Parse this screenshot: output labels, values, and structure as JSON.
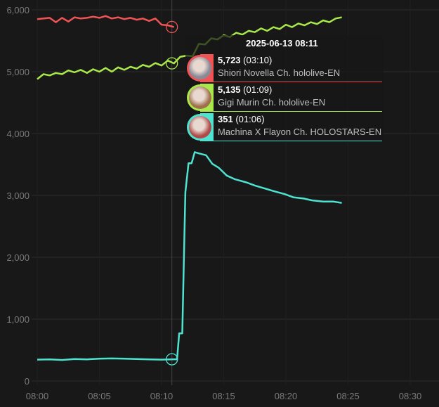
{
  "chart_data": {
    "type": "line",
    "xlabel": "",
    "ylabel": "",
    "ylim": [
      0,
      6000
    ],
    "xlim": [
      "08:00",
      "08:31"
    ],
    "y_ticks": [
      "0",
      "1,000",
      "2,000",
      "3,000",
      "4,000",
      "5,000",
      "6,000"
    ],
    "y_tick_values": [
      0,
      1000,
      2000,
      3000,
      4000,
      5000,
      6000
    ],
    "x_ticks": [
      "08:00",
      "08:05",
      "08:10",
      "08:15",
      "08:20",
      "08:25",
      "08:30"
    ],
    "grid": true,
    "legend": "none",
    "series": [
      {
        "name": "Shiori Novella Ch. hololive-EN",
        "color": "#f05454",
        "x": [
          "08:00:00",
          "08:00:30",
          "08:01:00",
          "08:01:30",
          "08:02:00",
          "08:02:30",
          "08:03:00",
          "08:03:30",
          "08:04:00",
          "08:04:30",
          "08:05:00",
          "08:05:30",
          "08:06:00",
          "08:06:30",
          "08:07:00",
          "08:07:30",
          "08:08:00",
          "08:08:30",
          "08:09:00",
          "08:09:30",
          "08:10:00",
          "08:10:30",
          "08:11:00"
        ],
        "values": [
          5850,
          5860,
          5870,
          5800,
          5870,
          5810,
          5880,
          5860,
          5870,
          5890,
          5870,
          5900,
          5860,
          5880,
          5850,
          5870,
          5840,
          5860,
          5820,
          5860,
          5760,
          5750,
          5723
        ]
      },
      {
        "name": "Gigi Murin Ch. hololive-EN",
        "color": "#a8e84a",
        "x": [
          "08:00:00",
          "08:00:30",
          "08:01:00",
          "08:01:30",
          "08:02:00",
          "08:02:30",
          "08:03:00",
          "08:03:30",
          "08:04:00",
          "08:04:30",
          "08:05:00",
          "08:05:30",
          "08:06:00",
          "08:06:30",
          "08:07:00",
          "08:07:30",
          "08:08:00",
          "08:08:30",
          "08:09:00",
          "08:09:30",
          "08:10:00",
          "08:10:30",
          "08:11:00",
          "08:11:30",
          "08:12:00",
          "08:12:30",
          "08:13:00",
          "08:13:30",
          "08:14:00",
          "08:14:30",
          "08:15:00",
          "08:15:30",
          "08:16:00",
          "08:16:30",
          "08:17:00",
          "08:17:30",
          "08:18:00",
          "08:18:30",
          "08:19:00",
          "08:19:30",
          "08:20:00",
          "08:20:30",
          "08:21:00",
          "08:21:30",
          "08:22:00",
          "08:22:30",
          "08:23:00",
          "08:23:30",
          "08:24:00",
          "08:24:30"
        ],
        "values": [
          4880,
          4960,
          4940,
          4980,
          4960,
          5020,
          4990,
          5030,
          4980,
          5040,
          5000,
          5060,
          5000,
          5070,
          5030,
          5080,
          5050,
          5110,
          5080,
          5140,
          5100,
          5180,
          5135,
          5240,
          5260,
          5250,
          5450,
          5440,
          5540,
          5520,
          5590,
          5560,
          5630,
          5600,
          5660,
          5640,
          5700,
          5660,
          5720,
          5690,
          5760,
          5720,
          5780,
          5750,
          5800,
          5770,
          5830,
          5800,
          5860,
          5880
        ]
      },
      {
        "name": "Machina X Flayon Ch. HOLOSTARS-EN",
        "color": "#4de3d0",
        "x": [
          "08:00:00",
          "08:01:00",
          "08:02:00",
          "08:03:00",
          "08:04:00",
          "08:05:00",
          "08:06:00",
          "08:07:00",
          "08:08:00",
          "08:09:00",
          "08:10:00",
          "08:11:00",
          "08:11:15",
          "08:11:25",
          "08:11:40",
          "08:11:55",
          "08:12:10",
          "08:12:25",
          "08:12:40",
          "08:13:00",
          "08:13:35",
          "08:14:05",
          "08:14:35",
          "08:15:15",
          "08:15:55",
          "08:16:50",
          "08:17:30",
          "08:18:10",
          "08:19:00",
          "08:19:55",
          "08:20:35",
          "08:21:25",
          "08:22:05",
          "08:23:00",
          "08:23:50",
          "08:24:30"
        ],
        "values": [
          345,
          350,
          340,
          355,
          350,
          360,
          365,
          360,
          355,
          350,
          345,
          351,
          351,
          770,
          770,
          3050,
          3520,
          3520,
          3700,
          3680,
          3650,
          3510,
          3450,
          3320,
          3260,
          3210,
          3160,
          3120,
          3070,
          3020,
          2970,
          2950,
          2920,
          2900,
          2900,
          2880
        ]
      }
    ],
    "cursor": "08:11"
  },
  "tooltip": {
    "title": "2025-06-13 08:11",
    "items": [
      {
        "value": "5,723",
        "duration": "(03:10)",
        "name": "Shiori Novella Ch. hololive-EN",
        "color": "#f05454",
        "avatar": "#8a8a96"
      },
      {
        "value": "5,135",
        "duration": "(01:09)",
        "name": "Gigi Murin Ch. hololive-EN",
        "color": "#a8e84a",
        "avatar": "#a0704c"
      },
      {
        "value": "351",
        "duration": "(01:06)",
        "name": "Machina X Flayon Ch. HOLOSTARS-EN",
        "color": "#4de3d0",
        "avatar": "#b04a48"
      }
    ]
  }
}
